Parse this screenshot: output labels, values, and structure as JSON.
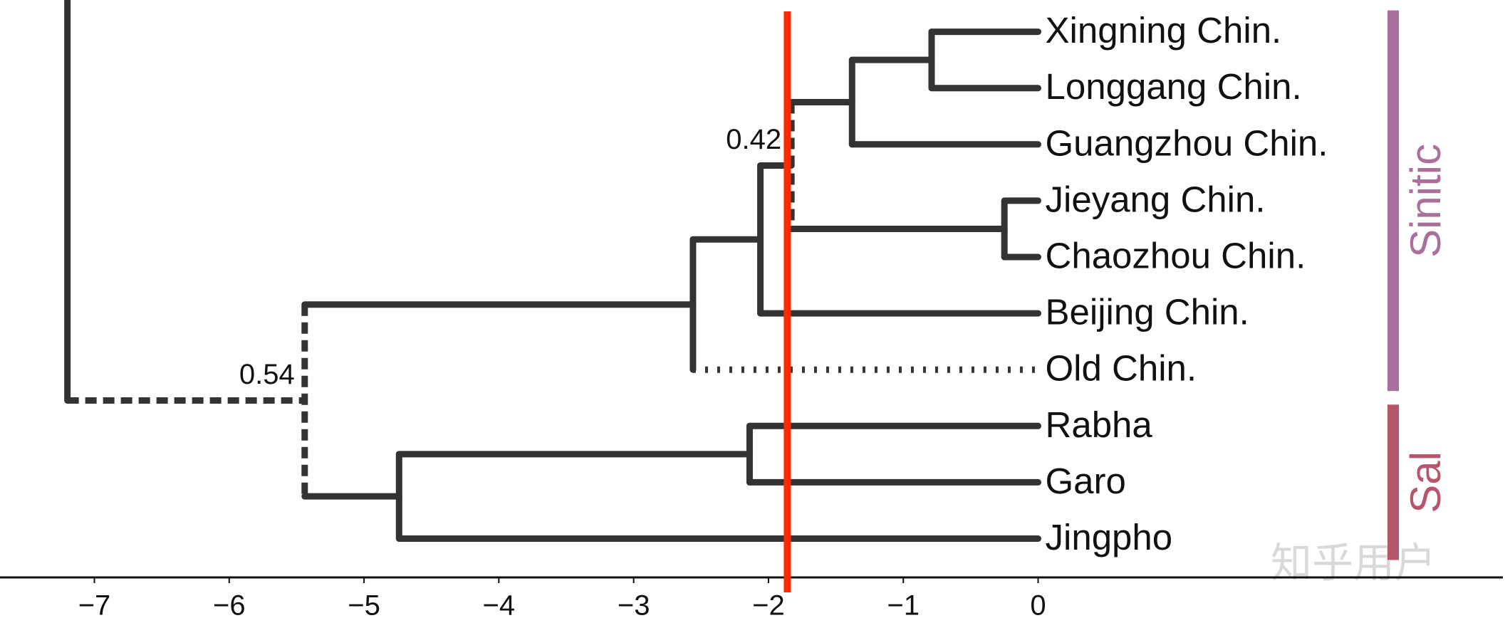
{
  "chart_data": {
    "type": "dendrogram",
    "xlim": [
      -7.7,
      3.5
    ],
    "xticks": [
      {
        "value": -7,
        "label": "−7"
      },
      {
        "value": -6,
        "label": "−6"
      },
      {
        "value": -5,
        "label": "−5"
      },
      {
        "value": -4,
        "label": "−4"
      },
      {
        "value": -3,
        "label": "−3"
      },
      {
        "value": -2,
        "label": "−2"
      },
      {
        "value": -1,
        "label": "−1"
      },
      0
    ],
    "threshold": {
      "value": -1.86,
      "color": "#ff2a00"
    },
    "branch_color": "#333333",
    "tree": {
      "height": -7.2,
      "children": [
        {
          "height": -5.44,
          "support": "0.54",
          "vertical_style": "dashed",
          "branch_style": "dashed",
          "children": [
            {
              "height": -2.56,
              "clade": {
                "label": "Sinitic",
                "color": "#a8709a"
              },
              "children": [
                {
                  "height": -2.06,
                  "children": [
                    {
                      "height": -1.83,
                      "support": "0.42",
                      "vertical_style": "dashed",
                      "children": [
                        {
                          "height": -1.38,
                          "children": [
                            {
                              "height": -0.79,
                              "children": [
                                {
                                  "label": "Xingning Chin.",
                                  "height": 0
                                },
                                {
                                  "label": "Longgang Chin.",
                                  "height": 0
                                }
                              ]
                            },
                            {
                              "label": "Guangzhou Chin.",
                              "height": 0
                            }
                          ]
                        },
                        {
                          "height": -0.25,
                          "children": [
                            {
                              "label": "Jieyang Chin.",
                              "height": 0
                            },
                            {
                              "label": "Chaozhou Chin.",
                              "height": 0
                            }
                          ]
                        }
                      ]
                    },
                    {
                      "label": "Beijing Chin.",
                      "height": 0
                    }
                  ]
                },
                {
                  "label": "Old Chin.",
                  "height": 0,
                  "branch_style": "dotted"
                }
              ]
            },
            {
              "height": -4.74,
              "clade": {
                "label": "Sal",
                "color": "#b5566c"
              },
              "children": [
                {
                  "height": -2.14,
                  "children": [
                    {
                      "label": "Rabha",
                      "height": 0
                    },
                    {
                      "label": "Garo",
                      "height": 0
                    }
                  ]
                },
                {
                  "label": "Jingpho",
                  "height": 0
                }
              ]
            }
          ]
        }
      ]
    },
    "watermark": "知乎用户"
  }
}
